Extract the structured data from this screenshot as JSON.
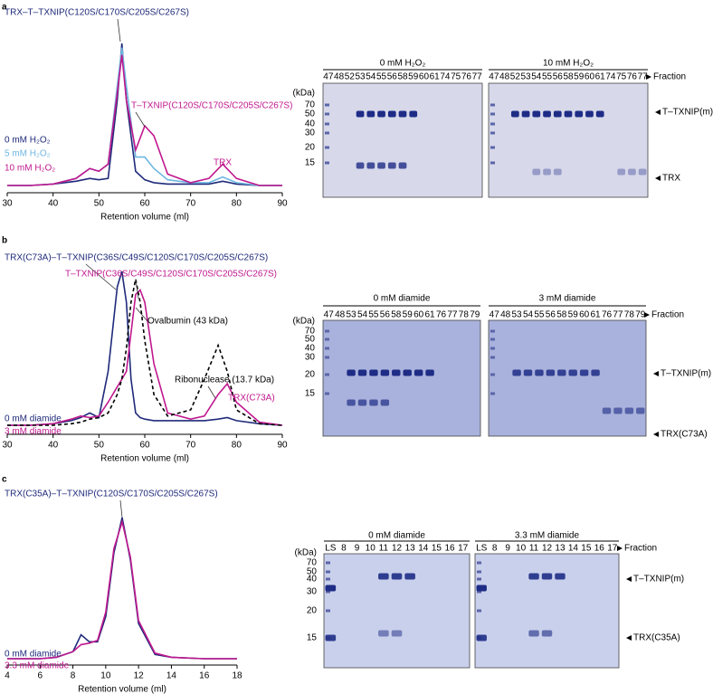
{
  "panel_labels": [
    "a",
    "b",
    "c"
  ],
  "chart_data": [
    {
      "type": "line",
      "xlabel": "Retention volume (ml)",
      "xlim": [
        30,
        90
      ],
      "xticks": [
        30,
        40,
        50,
        60,
        70,
        80,
        90
      ],
      "x": [
        30,
        35,
        40,
        45,
        48,
        50,
        52,
        54,
        55,
        56,
        58,
        60,
        62,
        65,
        70,
        74,
        77,
        80,
        85,
        90
      ],
      "series": [
        {
          "name": "0 mM H₂O₂",
          "color": "#1f2a7a",
          "values": [
            0,
            0,
            0.01,
            0.03,
            0.05,
            0.04,
            0.05,
            0.6,
            1.0,
            0.6,
            0.1,
            0.04,
            0.02,
            0.01,
            0.01,
            0.01,
            0.03,
            0.01,
            0,
            0
          ]
        },
        {
          "name": "5 mM H₂O₂",
          "color": "#6fb7e0",
          "values": [
            0,
            0,
            0.01,
            0.05,
            0.12,
            0.1,
            0.15,
            0.7,
            0.97,
            0.7,
            0.2,
            0.2,
            0.12,
            0.04,
            0.02,
            0.02,
            0.06,
            0.02,
            0,
            0
          ]
        },
        {
          "name": "10 mM H₂O₂",
          "color": "#c0188f",
          "values": [
            0,
            0,
            0.01,
            0.05,
            0.12,
            0.1,
            0.15,
            0.65,
            0.92,
            0.6,
            0.25,
            0.42,
            0.35,
            0.08,
            0.02,
            0.05,
            0.15,
            0.05,
            0,
            0
          ]
        }
      ],
      "annotations": [
        {
          "text": "TRX–T–TXNIP(C120S/C170S/C205S/C267S)",
          "color": "#1f2a7a"
        },
        {
          "text": "T–TXNIP(C120S/C170S/C205S/C267S)",
          "color": "#c0188f"
        },
        {
          "text": "TRX",
          "color": "#c0188f"
        }
      ]
    },
    {
      "type": "line",
      "xlabel": "Retention volume (ml)",
      "xlim": [
        30,
        90
      ],
      "xticks": [
        30,
        40,
        50,
        60,
        70,
        80,
        90
      ],
      "x": [
        30,
        35,
        40,
        44,
        46,
        48,
        50,
        52,
        54,
        55,
        56,
        57,
        58,
        59,
        60,
        62,
        65,
        70,
        73,
        76,
        78,
        80,
        85,
        90
      ],
      "series": [
        {
          "name": "0 mM diamide",
          "color": "#1f2a7a",
          "values": [
            0,
            0,
            0.01,
            0.03,
            0.05,
            0.08,
            0.05,
            0.35,
            0.9,
            1.0,
            0.8,
            0.3,
            0.08,
            0.05,
            0.04,
            0.03,
            0.03,
            0.03,
            0.03,
            0.04,
            0.05,
            0.03,
            0.01,
            0
          ]
        },
        {
          "name": "3 mM diamide",
          "color": "#c0188f",
          "values": [
            0,
            0,
            0.01,
            0.04,
            0.06,
            0.05,
            0.06,
            0.15,
            0.25,
            0.3,
            0.35,
            0.6,
            0.85,
            0.88,
            0.8,
            0.4,
            0.08,
            0.04,
            0.06,
            0.2,
            0.27,
            0.15,
            0.02,
            0
          ]
        },
        {
          "color": "#000000",
          "dash": true,
          "values": [
            0,
            0,
            0,
            0.01,
            0.02,
            0.04,
            0.05,
            0.08,
            0.2,
            0.3,
            0.5,
            0.8,
            0.95,
            0.8,
            0.55,
            0.2,
            0.06,
            0.1,
            0.3,
            0.52,
            0.35,
            0.1,
            0.01,
            0
          ]
        }
      ],
      "annotations": [
        {
          "text": "TRX(C73A)–T–TXNIP(C36S/C49S/C120S/C170S/C205S/C267S)",
          "color": "#1f2a7a"
        },
        {
          "text": "T–TXNIP(C36S/C49S/C120S/C170S/C205S/C267S)",
          "color": "#c0188f"
        },
        {
          "text": "Ovalbumin (43 kDa)",
          "color": "#000000"
        },
        {
          "text": "Ribonuclease (13.7 kDa)",
          "color": "#000000"
        },
        {
          "text": "TRX(C73A)",
          "color": "#c0188f"
        }
      ]
    },
    {
      "type": "line",
      "xlabel": "Retention volume (ml)",
      "xlim": [
        4,
        18
      ],
      "xticks": [
        4,
        6,
        8,
        10,
        12,
        14,
        16,
        18
      ],
      "x": [
        4,
        6,
        7,
        8,
        8.5,
        9,
        9.5,
        10,
        10.5,
        11,
        11.5,
        12,
        13,
        14,
        16,
        18
      ],
      "series": [
        {
          "name": "0 mM diamide",
          "color": "#1f2a7a",
          "values": [
            0,
            0,
            0.01,
            0.05,
            0.17,
            0.12,
            0.12,
            0.3,
            0.75,
            1.0,
            0.7,
            0.25,
            0.03,
            0.01,
            0,
            0
          ]
        },
        {
          "name": "3.3 mM diamide",
          "color": "#c0188f",
          "values": [
            0,
            0,
            0.01,
            0.05,
            0.1,
            0.11,
            0.13,
            0.33,
            0.78,
            0.97,
            0.72,
            0.27,
            0.04,
            0.01,
            0,
            0
          ]
        }
      ],
      "annotations": [
        {
          "text": "TRX(C35A)–T–TXNIP(C120S/C170S/C205S/C267S)",
          "color": "#1f2a7a"
        }
      ]
    }
  ],
  "gel_panels": [
    {
      "kda": [
        "(kDa)",
        "70",
        "50",
        "40",
        "30",
        "20",
        "15"
      ],
      "fraction": "Fraction",
      "markers": [
        "T–TXNIP(m)",
        "TRX"
      ],
      "sheets": [
        {
          "title": "0 mM H₂O₂",
          "lanes": [
            "47",
            "48",
            "52",
            "53",
            "54",
            "55",
            "56",
            "58",
            "59",
            "60",
            "61",
            "74",
            "75",
            "76",
            "77"
          ]
        },
        {
          "title": "10 mM H₂O₂",
          "lanes": [
            "47",
            "48",
            "52",
            "53",
            "54",
            "55",
            "56",
            "58",
            "59",
            "60",
            "61",
            "74",
            "75",
            "76",
            "77"
          ]
        }
      ]
    },
    {
      "kda": [
        "(kDa)",
        "70",
        "50",
        "40",
        "30",
        "20",
        "15"
      ],
      "fraction": "Fraction",
      "markers": [
        "T–TXNIP(m)",
        "TRX(C73A)"
      ],
      "sheets": [
        {
          "title": "0 mM diamide",
          "lanes": [
            "47",
            "48",
            "53",
            "54",
            "55",
            "56",
            "58",
            "59",
            "60",
            "61",
            "76",
            "77",
            "78",
            "79"
          ]
        },
        {
          "title": "3 mM diamide",
          "lanes": [
            "47",
            "48",
            "53",
            "54",
            "55",
            "56",
            "58",
            "59",
            "60",
            "61",
            "76",
            "77",
            "78",
            "79"
          ]
        }
      ]
    },
    {
      "kda": [
        "(kDa)",
        "70",
        "50",
        "40",
        "30",
        "20",
        "15"
      ],
      "fraction": "Fraction",
      "markers": [
        "T–TXNIP(m)",
        "TRX(C35A)"
      ],
      "sheets": [
        {
          "title": "0 mM diamide",
          "lanes": [
            "LS",
            "8",
            "9",
            "10",
            "11",
            "12",
            "13",
            "14",
            "15",
            "16",
            "17"
          ]
        },
        {
          "title": "3.3 mM diamide",
          "lanes": [
            "LS",
            "8",
            "9",
            "10",
            "11",
            "12",
            "13",
            "14",
            "15",
            "16",
            "17"
          ]
        }
      ]
    }
  ]
}
